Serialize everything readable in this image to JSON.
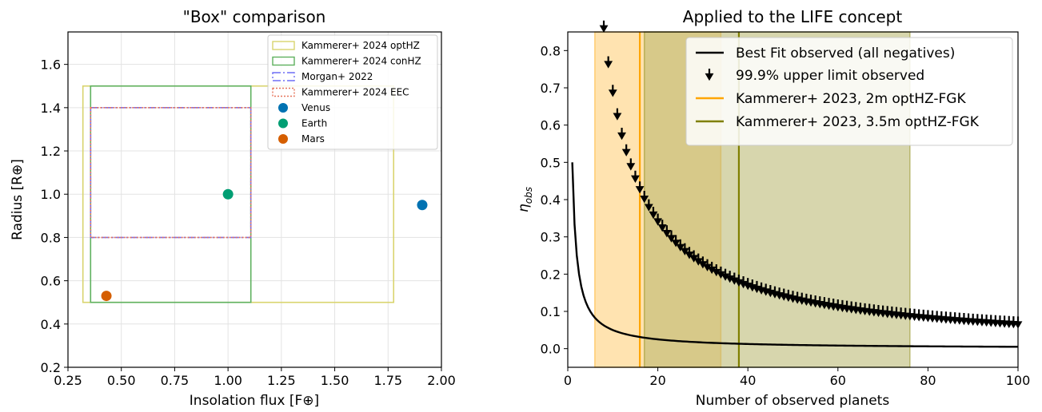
{
  "chart_data": [
    {
      "type": "scatter",
      "title": "\"Box\" comparison",
      "xlabel": "Insolation flux [F⊕]",
      "ylabel": "Radius [R⊕]",
      "xlim": [
        0.25,
        2.0
      ],
      "ylim": [
        0.2,
        1.75
      ],
      "xticks": [
        "0.25",
        "0.50",
        "0.75",
        "1.00",
        "1.25",
        "1.50",
        "1.75",
        "2.00"
      ],
      "yticks": [
        "0.2",
        "0.4",
        "0.6",
        "0.8",
        "1.0",
        "1.2",
        "1.4",
        "1.6"
      ],
      "grid": true,
      "legend_position": "top-right",
      "boxes": [
        {
          "name": "Kammerer+ 2024 optHZ",
          "x": [
            0.32,
            1.776
          ],
          "y": [
            0.5,
            1.5
          ],
          "color": "#d9d46e",
          "style": "solid"
        },
        {
          "name": "Kammerer+ 2024 conHZ",
          "x": [
            0.356,
            1.107
          ],
          "y": [
            0.5,
            1.5
          ],
          "color": "#5fb15f",
          "style": "solid"
        },
        {
          "name": "Morgan+ 2022",
          "x": [
            0.356,
            1.107
          ],
          "y": [
            0.8,
            1.4
          ],
          "color": "#6e6ef5",
          "style": "dashdot"
        },
        {
          "name": "Kammerer+ 2024 EEC",
          "x": [
            0.356,
            1.107
          ],
          "y": [
            0.8,
            1.4
          ],
          "color": "#e6735a",
          "style": "dotted"
        }
      ],
      "points": [
        {
          "name": "Venus",
          "x": 1.91,
          "y": 0.95,
          "color": "#0072b2"
        },
        {
          "name": "Earth",
          "x": 1.0,
          "y": 1.0,
          "color": "#009e73"
        },
        {
          "name": "Mars",
          "x": 0.43,
          "y": 0.53,
          "color": "#d55e00"
        }
      ]
    },
    {
      "type": "line",
      "title": "Applied to the LIFE concept",
      "xlabel": "Number of observed planets",
      "ylabel": "η_obs",
      "ylabel_main": "η",
      "ylabel_sub": "obs",
      "xlim": [
        0,
        100
      ],
      "ylim": [
        -0.05,
        0.85
      ],
      "xticks": [
        "0",
        "20",
        "40",
        "60",
        "80",
        "100"
      ],
      "yticks": [
        "0.0",
        "0.1",
        "0.2",
        "0.3",
        "0.4",
        "0.5",
        "0.6",
        "0.7",
        "0.8"
      ],
      "grid": false,
      "legend_position": "top-right",
      "series": [
        {
          "name": "Best Fit observed (all negatives)",
          "formula": "0.5/n",
          "x_range": [
            1,
            100
          ],
          "color": "#000000"
        },
        {
          "name": "99.9% upper limit observed",
          "formula": "-ln(0.001)/n",
          "x_range": [
            3,
            100
          ],
          "color": "#000000",
          "marker": "upper-limit-arrow"
        }
      ],
      "vlines": [
        {
          "name": "Kammerer+ 2023, 2m optHZ-FGK",
          "x": 16,
          "band": [
            6,
            34
          ],
          "color": "#ffa500"
        },
        {
          "name": "Kammerer+ 2023, 3.5m optHZ-FGK",
          "x": 38,
          "band": [
            17,
            76
          ],
          "color": "#808000"
        }
      ]
    }
  ]
}
